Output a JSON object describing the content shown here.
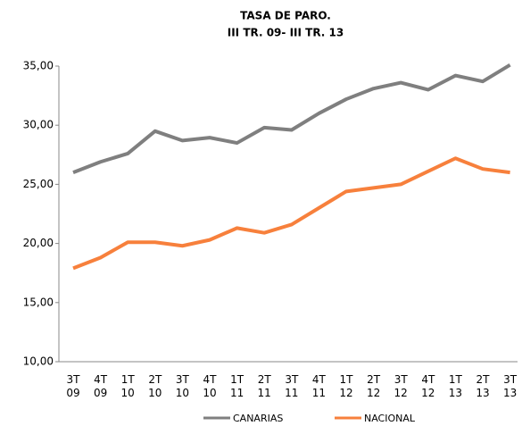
{
  "chart_data": {
    "type": "line",
    "title": "TASA DE PARO.",
    "subtitle": "III TR. 09- III TR. 13",
    "categories": [
      "3T\n09",
      "4T\n09",
      "1T\n10",
      "2T\n10",
      "3T\n10",
      "4T\n10",
      "1T\n11",
      "2T\n11",
      "3T\n11",
      "4T\n11",
      "1T\n12",
      "2T\n12",
      "3T\n12",
      "4T\n12",
      "1T\n13",
      "2T\n13",
      "3T\n13"
    ],
    "series": [
      {
        "name": "CANARIAS",
        "color": "#7f7f7f",
        "values": [
          26.0,
          26.9,
          27.6,
          29.5,
          28.7,
          28.95,
          28.5,
          29.8,
          29.6,
          31.0,
          32.2,
          33.1,
          33.6,
          33.0,
          34.2,
          33.7,
          35.1
        ]
      },
      {
        "name": "NACIONAL",
        "color": "#f7803c",
        "values": [
          17.9,
          18.8,
          20.1,
          20.1,
          19.8,
          20.3,
          21.3,
          20.9,
          21.6,
          23.0,
          24.4,
          24.7,
          25.0,
          26.1,
          27.2,
          26.3,
          26.0
        ]
      }
    ],
    "ylim": [
      10,
      35
    ],
    "yticks": [
      {
        "value": 10,
        "label": "10,00"
      },
      {
        "value": 15,
        "label": "15,00"
      },
      {
        "value": 20,
        "label": "20,00"
      },
      {
        "value": 25,
        "label": "25,00"
      },
      {
        "value": 30,
        "label": "30,00"
      },
      {
        "value": 35,
        "label": "35,00"
      }
    ],
    "grid": false,
    "legend": "bottom"
  }
}
